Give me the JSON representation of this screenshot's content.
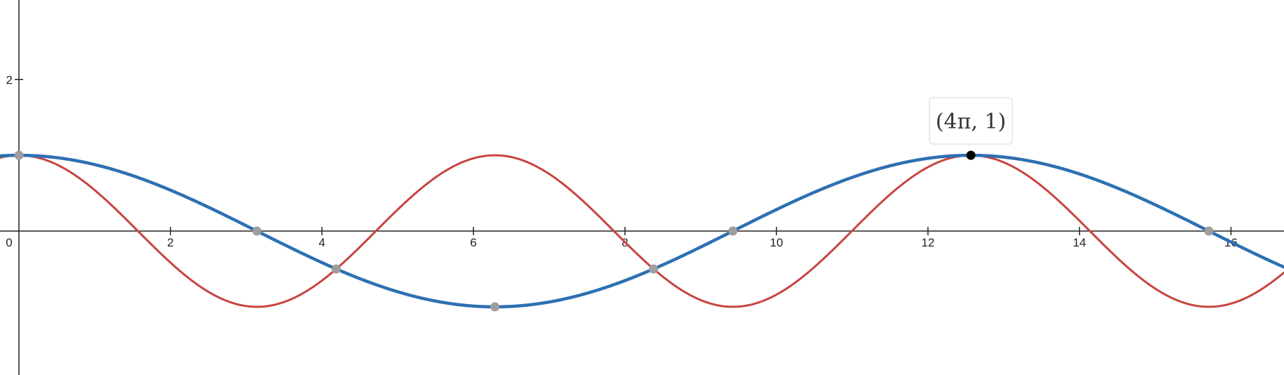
{
  "chart_data": {
    "type": "line",
    "title": "",
    "xlabel": "",
    "ylabel": "",
    "xlim": [
      -0.25,
      16.7
    ],
    "ylim": [
      -1.9,
      3.05
    ],
    "x_ticks": [
      {
        "value": 0,
        "label": "0"
      },
      {
        "value": 2,
        "label": "2"
      },
      {
        "value": 4,
        "label": "4"
      },
      {
        "value": 6,
        "label": "6"
      },
      {
        "value": 8,
        "label": "8"
      },
      {
        "value": 10,
        "label": "10"
      },
      {
        "value": 12,
        "label": "12"
      },
      {
        "value": 14,
        "label": "14"
      },
      {
        "value": 16,
        "label": "16"
      }
    ],
    "y_ticks": [
      {
        "value": 2,
        "label": "2"
      }
    ],
    "grid": false,
    "series": [
      {
        "expression": "cos(x/2)",
        "color": "#2d70b3",
        "width": 4.5
      },
      {
        "expression": "cos(x)",
        "color": "#c74440",
        "width": 3
      }
    ],
    "points": [
      {
        "x": 0,
        "y": 1,
        "color": "#9e9e9e"
      },
      {
        "x": 3.1416,
        "y": 0,
        "color": "#9e9e9e"
      },
      {
        "x": 4.1888,
        "y": -0.5,
        "color": "#9e9e9e"
      },
      {
        "x": 6.2832,
        "y": -1,
        "color": "#9e9e9e"
      },
      {
        "x": 8.3776,
        "y": -0.5,
        "color": "#9e9e9e"
      },
      {
        "x": 9.4248,
        "y": 0,
        "color": "#9e9e9e"
      },
      {
        "x": 15.708,
        "y": 0,
        "color": "#9e9e9e"
      },
      {
        "x": 12.5664,
        "y": 1,
        "color": "#000000"
      }
    ],
    "tooltip": {
      "label": "(4π, 1)",
      "x": 12.5664,
      "y": 1
    }
  }
}
